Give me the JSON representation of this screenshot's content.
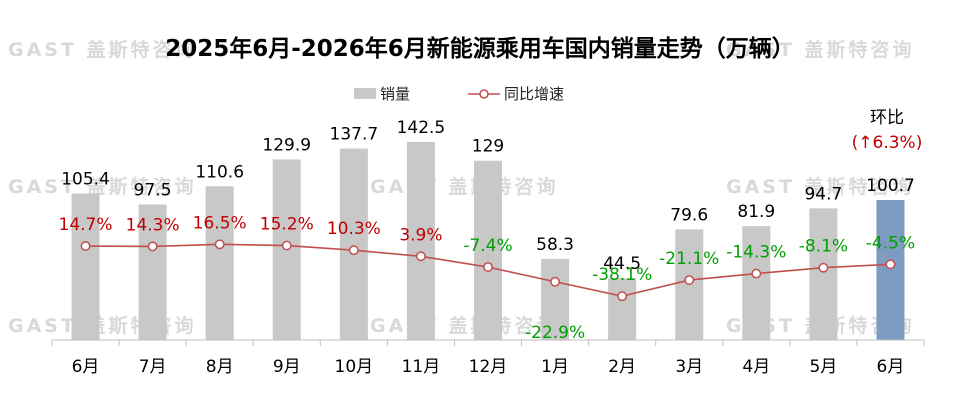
{
  "title": "2025年6月-2026年6月新能源乘用车国内销量走势（万辆）",
  "watermark": "GAST 盖斯特咨询",
  "legend": {
    "bar_label": "销量",
    "line_label": "同比增速"
  },
  "colors": {
    "bar": "#c8c8c8",
    "bar_highlight": "#7e9bc2",
    "line": "#c0504d",
    "positive": "#c00000",
    "negative": "#00a000",
    "axis": "#bfbfbf"
  },
  "annotation": {
    "label": "环比",
    "value": "(↑6.3%)"
  },
  "chart_data": {
    "type": "bar",
    "categories": [
      "6月",
      "7月",
      "8月",
      "9月",
      "10月",
      "11月",
      "12月",
      "1月",
      "2月",
      "3月",
      "4月",
      "5月",
      "6月"
    ],
    "series": [
      {
        "name": "销量",
        "type": "bar",
        "values": [
          105.4,
          97.5,
          110.6,
          129.9,
          137.7,
          142.5,
          129,
          58.3,
          44.5,
          79.6,
          81.9,
          94.7,
          100.7
        ],
        "labels": [
          "105.4",
          "97.5",
          "110.6",
          "129.9",
          "137.7",
          "142.5",
          "129",
          "58.3",
          "44.5",
          "79.6",
          "81.9",
          "94.7",
          "100.7"
        ]
      },
      {
        "name": "同比增速",
        "type": "line",
        "values": [
          14.7,
          14.3,
          16.5,
          15.2,
          10.3,
          3.9,
          -7.4,
          -22.9,
          -38.1,
          -21.1,
          -14.3,
          -8.1,
          -4.5
        ],
        "labels": [
          "14.7%",
          "14.3%",
          "16.5%",
          "15.2%",
          "10.3%",
          "3.9%",
          "-7.4%",
          "-22.9%",
          "-38.1%",
          "-21.1%",
          "-14.3%",
          "-8.1%",
          "-4.5%"
        ]
      }
    ],
    "highlight_index": 12
  }
}
